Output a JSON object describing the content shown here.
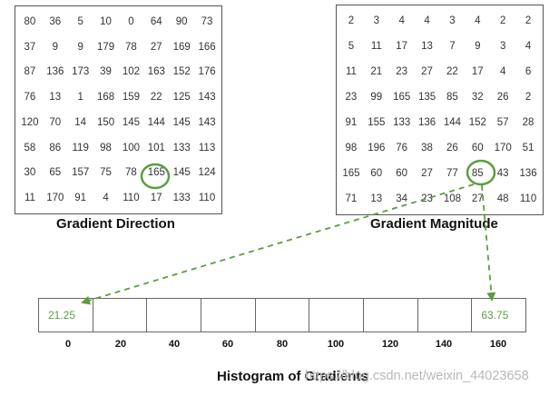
{
  "direction": {
    "title": "Gradient Direction",
    "values": [
      [
        80,
        36,
        5,
        10,
        0,
        64,
        90,
        73
      ],
      [
        37,
        9,
        9,
        179,
        78,
        27,
        169,
        166
      ],
      [
        87,
        136,
        173,
        39,
        102,
        163,
        152,
        176
      ],
      [
        76,
        13,
        1,
        168,
        159,
        22,
        125,
        143
      ],
      [
        120,
        70,
        14,
        150,
        145,
        144,
        145,
        143
      ],
      [
        58,
        86,
        119,
        98,
        100,
        101,
        133,
        113
      ],
      [
        30,
        65,
        157,
        75,
        78,
        165,
        145,
        124
      ],
      [
        11,
        170,
        91,
        4,
        110,
        17,
        133,
        110
      ]
    ]
  },
  "magnitude": {
    "title": "Gradient Magnitude",
    "values": [
      [
        2,
        3,
        4,
        4,
        3,
        4,
        2,
        2
      ],
      [
        5,
        11,
        17,
        13,
        7,
        9,
        3,
        4
      ],
      [
        11,
        21,
        23,
        27,
        22,
        17,
        4,
        6
      ],
      [
        23,
        99,
        165,
        135,
        85,
        32,
        26,
        2
      ],
      [
        91,
        155,
        133,
        136,
        144,
        152,
        57,
        28
      ],
      [
        98,
        196,
        76,
        38,
        26,
        60,
        170,
        51
      ],
      [
        165,
        60,
        60,
        27,
        77,
        85,
        43,
        136
      ],
      [
        71,
        13,
        34,
        23,
        108,
        27,
        48,
        110
      ]
    ]
  },
  "highlight": {
    "row": 6,
    "col": 5,
    "color": "#5a9e3e"
  },
  "histogram": {
    "title": "Histogram of Gradients",
    "bins": [
      "21.25",
      "",
      "",
      "",
      "",
      "",
      "",
      "",
      "63.75"
    ],
    "ticks": [
      "0",
      "20",
      "40",
      "60",
      "80",
      "100",
      "120",
      "140",
      "160"
    ]
  },
  "watermark": "https://blog.csdn.net/weixin_44023658"
}
